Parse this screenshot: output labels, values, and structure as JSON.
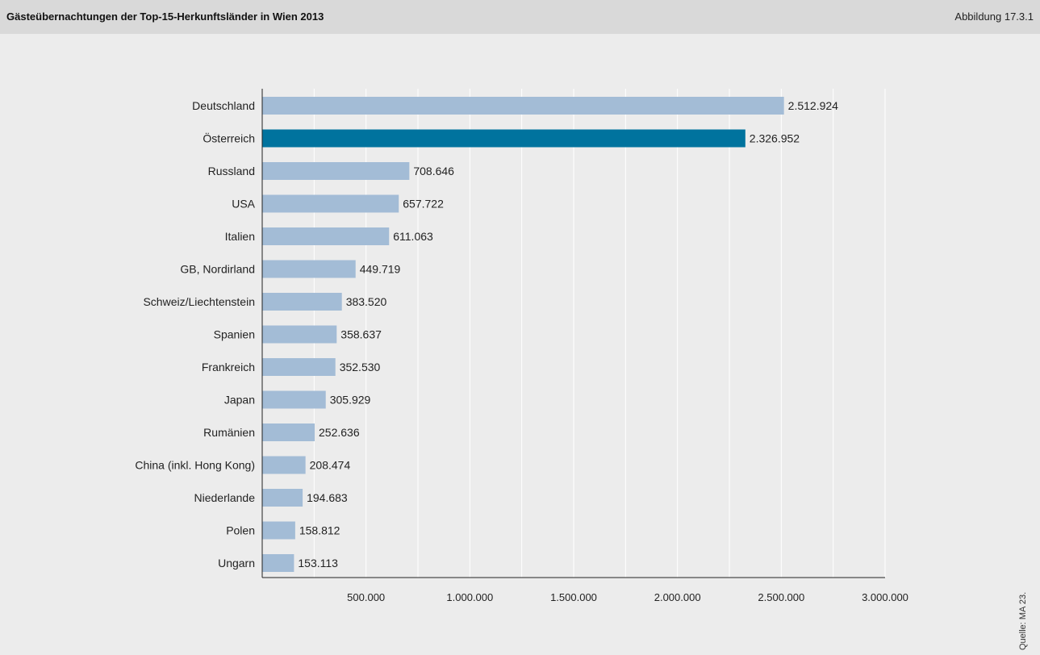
{
  "header": {
    "title": "Gästeübernachtungen der Top-15-Herkunftsländer in Wien 2013",
    "figure_ref": "Abbildung 17.3.1"
  },
  "source": "Quelle: MA 23.",
  "colors": {
    "bar": "#a3bcd6",
    "highlight": "#00739e",
    "background": "#ececec",
    "header": "#d9d9d9",
    "grid": "#ffffff"
  },
  "chart_data": {
    "type": "bar",
    "orientation": "horizontal",
    "categories": [
      "Deutschland",
      "Österreich",
      "Russland",
      "USA",
      "Italien",
      "GB, Nordirland",
      "Schweiz/Liechtenstein",
      "Spanien",
      "Frankreich",
      "Japan",
      "Rumänien",
      "China (inkl. Hong Kong)",
      "Niederlande",
      "Polen",
      "Ungarn"
    ],
    "values": [
      2512924,
      2326952,
      708646,
      657722,
      611063,
      449719,
      383520,
      358637,
      352530,
      305929,
      252636,
      208474,
      194683,
      158812,
      153113
    ],
    "value_labels": [
      "2.512.924",
      "2.326.952",
      "708.646",
      "657.722",
      "611.063",
      "449.719",
      "383.520",
      "358.637",
      "352.530",
      "305.929",
      "252.636",
      "208.474",
      "194.683",
      "158.812",
      "153.113"
    ],
    "highlighted": [
      "Österreich"
    ],
    "xlim": [
      0,
      3000000
    ],
    "xticks": [
      500000,
      1000000,
      1500000,
      2000000,
      2500000,
      3000000
    ],
    "xtick_labels": [
      "500.000",
      "1.000.000",
      "1.500.000",
      "2.000.000",
      "2.500.000",
      "3.000.000"
    ],
    "grid": true,
    "title": "",
    "xlabel": "",
    "ylabel": ""
  }
}
